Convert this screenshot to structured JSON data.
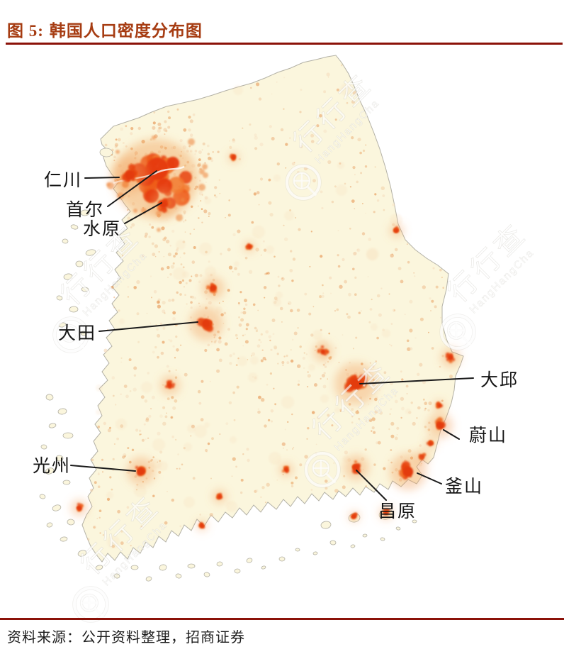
{
  "figure": {
    "label": "图 5:",
    "title": "韩国人口密度分布图"
  },
  "footer": {
    "source": "资料来源：公开资料整理，招商证券"
  },
  "watermark": {
    "cn": "行行查",
    "en": "HangHangCha"
  },
  "map": {
    "name": "韩国人口密度分布图",
    "colors": {
      "title": "#A63C12",
      "rule": "#8B1209",
      "land": "#FBF6DD",
      "coast": "#B3B1A6",
      "density_low": "#F2C9A2",
      "density_mid": "#EE8B44",
      "density_high": "#E8430E",
      "label_text": "#151515"
    },
    "cities": [
      {
        "id": "incheon",
        "name": "仁川",
        "label": [
          62,
          262
        ],
        "line": [
          120,
          251,
          168,
          250
        ],
        "hotspot": [
          183,
          247
        ],
        "size": 13
      },
      {
        "id": "seoul",
        "name": "首尔",
        "label": [
          93,
          304
        ],
        "line": [
          152,
          291,
          221,
          241
        ],
        "hotspot": [
          222,
          238
        ],
        "size": 24
      },
      {
        "id": "suwon",
        "name": "水原",
        "label": [
          117,
          331
        ],
        "line": [
          176,
          315,
          228,
          286
        ],
        "hotspot": [
          231,
          288
        ],
        "size": 10
      },
      {
        "id": "daejeon",
        "name": "大田",
        "label": [
          82,
          478
        ],
        "line": [
          140,
          467,
          279,
          454
        ],
        "hotspot": [
          291,
          456
        ],
        "size": 12
      },
      {
        "id": "daegu",
        "name": "大邱",
        "label": [
          678,
          544
        ],
        "line": [
          668,
          533,
          508,
          541
        ],
        "hotspot": [
          502,
          541
        ],
        "size": 15
      },
      {
        "id": "ulsan",
        "name": "蔚山",
        "label": [
          662,
          622
        ],
        "line": [
          648,
          619,
          626,
          606
        ],
        "hotspot": [
          621,
          600
        ],
        "size": 9
      },
      {
        "id": "gwangju",
        "name": "光州",
        "label": [
          46,
          665
        ],
        "line": [
          100,
          656,
          191,
          664
        ],
        "hotspot": [
          199,
          664
        ],
        "size": 10
      },
      {
        "id": "busan",
        "name": "釜山",
        "label": [
          628,
          694
        ],
        "line": [
          623,
          682,
          589,
          667
        ],
        "hotspot": [
          576,
          665
        ],
        "size": 13
      },
      {
        "id": "changwon",
        "name": "昌原",
        "label": [
          534,
          729
        ],
        "line": [
          545,
          705,
          503,
          663
        ],
        "hotspot": [
          503,
          659
        ],
        "size": 9
      }
    ]
  }
}
